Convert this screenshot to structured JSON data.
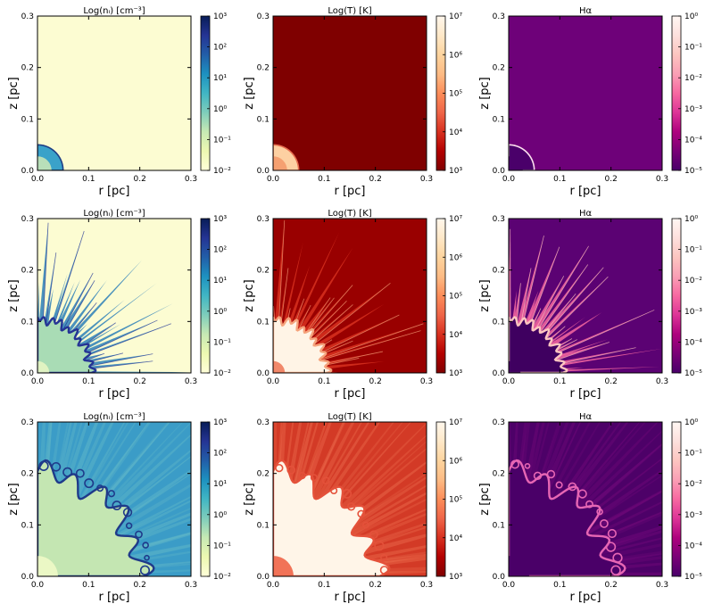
{
  "figure": {
    "rows": 3,
    "cols": 3,
    "row_variant": [
      "early",
      "spikes",
      "fingers"
    ]
  },
  "chart_data": [
    {
      "type": "heatmap",
      "row": 0,
      "col": 0,
      "title": "Log(nᵢ) [cm⁻³]",
      "xlabel": "r [pc]",
      "ylabel": "z [pc]",
      "xlim": [
        0,
        0.3
      ],
      "ylim": [
        0,
        0.3
      ],
      "xticks": [
        "0.0",
        "0.1",
        "0.2",
        "0.3"
      ],
      "yticks": [
        "0.0",
        "0.1",
        "0.2",
        "0.3"
      ],
      "colorbar": {
        "scale": "log",
        "range": [
          0.01,
          1000
        ],
        "ticks": [
          "10⁻²",
          "10⁻¹",
          "10⁰",
          "10¹",
          "10²",
          "10³"
        ],
        "cmap": "YlGnBu"
      },
      "colors": {
        "background": "#fcfcd2",
        "bubble": "#3aa2c9",
        "bubble_edge": "#1f3f86",
        "core": "#c7e6b7"
      },
      "features": {
        "ionized_radius_pc": 0.05
      }
    },
    {
      "type": "heatmap",
      "row": 0,
      "col": 1,
      "title": "Log(T) [K]",
      "xlabel": "r [pc]",
      "ylabel": "z [pc]",
      "xlim": [
        0,
        0.3
      ],
      "ylim": [
        0,
        0.3
      ],
      "xticks": [
        "0.0",
        "0.1",
        "0.2",
        "0.3"
      ],
      "yticks": [
        "0.0",
        "0.1",
        "0.2",
        "0.3"
      ],
      "colorbar": {
        "scale": "log",
        "range": [
          1000,
          10000000
        ],
        "ticks": [
          "10³",
          "10⁴",
          "10⁵",
          "10⁶",
          "10⁷"
        ],
        "cmap": "OrRd_r"
      },
      "colors": {
        "background": "#7f0000",
        "bubble": "#fdd0a2",
        "bubble_edge": "#e56b4e",
        "core": "#f49a6c"
      },
      "features": {
        "ionized_radius_pc": 0.05
      }
    },
    {
      "type": "heatmap",
      "row": 0,
      "col": 2,
      "title": "Hα",
      "xlabel": "r [pc]",
      "ylabel": "z [pc]",
      "xlim": [
        0,
        0.3
      ],
      "ylim": [
        0,
        0.3
      ],
      "xticks": [
        "0.0",
        "0.1",
        "0.2",
        "0.3"
      ],
      "yticks": [
        "0.0",
        "0.1",
        "0.2",
        "0.3"
      ],
      "colorbar": {
        "scale": "log",
        "range": [
          1e-05,
          1
        ],
        "ticks": [
          "10⁻⁵",
          "10⁻⁴",
          "10⁻³",
          "10⁻²",
          "10⁻¹",
          "10⁰"
        ],
        "cmap": "RdPu_r"
      },
      "colors": {
        "background": "#6e0179",
        "bubble": "#4a006a",
        "bubble_edge": "#fde0ef",
        "core": "#4a006a"
      },
      "features": {
        "ionized_radius_pc": 0.05
      }
    },
    {
      "type": "heatmap",
      "row": 1,
      "col": 0,
      "title": "Log(nᵢ) [cm⁻³]",
      "xlabel": "r [pc]",
      "ylabel": "z [pc]",
      "xlim": [
        0,
        0.3
      ],
      "ylim": [
        0,
        0.3
      ],
      "xticks": [
        "0.0",
        "0.1",
        "0.2",
        "0.3"
      ],
      "yticks": [
        "0.0",
        "0.1",
        "0.2",
        "0.3"
      ],
      "colorbar": {
        "scale": "log",
        "range": [
          0.01,
          1000
        ],
        "ticks": [
          "10⁻²",
          "10⁻¹",
          "10⁰",
          "10¹",
          "10²",
          "10³"
        ],
        "cmap": "YlGnBu"
      },
      "colors": {
        "background": "#fcfcd2",
        "bubble": "#a9dcb5",
        "bubble_edge": "#253494",
        "core": "#e6f5c3",
        "spike": "#2c7fb8"
      },
      "features": {
        "ionized_radius_pc": 0.105
      }
    },
    {
      "type": "heatmap",
      "row": 1,
      "col": 1,
      "title": "Log(T) [K]",
      "xlabel": "r [pc]",
      "ylabel": "z [pc]",
      "xlim": [
        0,
        0.3
      ],
      "ylim": [
        0,
        0.3
      ],
      "xticks": [
        "0.0",
        "0.1",
        "0.2",
        "0.3"
      ],
      "yticks": [
        "0.0",
        "0.1",
        "0.2",
        "0.3"
      ],
      "colorbar": {
        "scale": "log",
        "range": [
          1000,
          10000000
        ],
        "ticks": [
          "10³",
          "10⁴",
          "10⁵",
          "10⁶",
          "10⁷"
        ],
        "cmap": "OrRd_r"
      },
      "colors": {
        "background": "#990000",
        "bubble": "#fff4e6",
        "bubble_edge": "#f5a37c",
        "core": "#ef7c5c",
        "spike": "#d7301f"
      },
      "features": {
        "ionized_radius_pc": 0.105
      }
    },
    {
      "type": "heatmap",
      "row": 1,
      "col": 2,
      "title": "Hα",
      "xlabel": "r [pc]",
      "ylabel": "z [pc]",
      "xlim": [
        0,
        0.3
      ],
      "ylim": [
        0,
        0.3
      ],
      "xticks": [
        "0.0",
        "0.1",
        "0.2",
        "0.3"
      ],
      "yticks": [
        "0.0",
        "0.1",
        "0.2",
        "0.3"
      ],
      "colorbar": {
        "scale": "log",
        "range": [
          1e-05,
          1
        ],
        "ticks": [
          "10⁻⁵",
          "10⁻⁴",
          "10⁻³",
          "10⁻²",
          "10⁻¹",
          "10⁰"
        ],
        "cmap": "RdPu_r"
      },
      "colors": {
        "background": "#5b0273",
        "bubble": "#3f0060",
        "bubble_edge": "#fcc5c0",
        "core": "#3f0060",
        "spike": "#f768a1"
      },
      "features": {
        "ionized_radius_pc": 0.105
      }
    },
    {
      "type": "heatmap",
      "row": 2,
      "col": 0,
      "title": "Log(nᵢ) [cm⁻³]",
      "xlabel": "r [pc]",
      "ylabel": "z [pc]",
      "xlim": [
        0,
        0.3
      ],
      "ylim": [
        0,
        0.3
      ],
      "xticks": [
        "0.0",
        "0.1",
        "0.2",
        "0.3"
      ],
      "yticks": [
        "0.0",
        "0.1",
        "0.2",
        "0.3"
      ],
      "colorbar": {
        "scale": "log",
        "range": [
          0.01,
          1000
        ],
        "ticks": [
          "10⁻²",
          "10⁻¹",
          "10⁰",
          "10¹",
          "10²",
          "10³"
        ],
        "cmap": "YlGnBu"
      },
      "colors": {
        "background": "#3b9cc7",
        "bubble": "#c4e6b2",
        "bubble_edge": "#1f3a8a",
        "core": "#f0f9c6",
        "spike": "#6cc0c8"
      },
      "features": {
        "ionized_radius_pc": 0.2
      }
    },
    {
      "type": "heatmap",
      "row": 2,
      "col": 1,
      "title": "Log(T) [K]",
      "xlabel": "r [pc]",
      "ylabel": "z [pc]",
      "xlim": [
        0,
        0.3
      ],
      "ylim": [
        0,
        0.3
      ],
      "xticks": [
        "0.0",
        "0.1",
        "0.2",
        "0.3"
      ],
      "yticks": [
        "0.0",
        "0.1",
        "0.2",
        "0.3"
      ],
      "colorbar": {
        "scale": "log",
        "range": [
          1000,
          10000000
        ],
        "ticks": [
          "10³",
          "10⁴",
          "10⁵",
          "10⁶",
          "10⁷"
        ],
        "cmap": "OrRd_r"
      },
      "colors": {
        "background": "#d33a26",
        "bubble": "#fff5e8",
        "bubble_edge": "#e4513a",
        "core": "#ef6548",
        "spike": "#f07454"
      },
      "features": {
        "ionized_radius_pc": 0.2
      }
    },
    {
      "type": "heatmap",
      "row": 2,
      "col": 2,
      "title": "Hα",
      "xlabel": "r [pc]",
      "ylabel": "z [pc]",
      "xlim": [
        0,
        0.3
      ],
      "ylim": [
        0,
        0.3
      ],
      "xticks": [
        "0.0",
        "0.1",
        "0.2",
        "0.3"
      ],
      "yticks": [
        "0.0",
        "0.1",
        "0.2",
        "0.3"
      ],
      "colorbar": {
        "scale": "log",
        "range": [
          1e-05,
          1
        ],
        "ticks": [
          "10⁻⁵",
          "10⁻⁴",
          "10⁻³",
          "10⁻²",
          "10⁻¹",
          "10⁰"
        ],
        "cmap": "RdPu_r"
      },
      "colors": {
        "background": "#4d0168",
        "bubble": "#4a0068",
        "bubble_edge": "#e766b4",
        "core": "#4a0068",
        "spike": "#7a0b7e"
      },
      "features": {
        "ionized_radius_pc": 0.2
      }
    }
  ],
  "colormaps": {
    "YlGnBu": [
      "#ffffd9",
      "#edf8b1",
      "#c7e9b4",
      "#7fcdbb",
      "#41b6c4",
      "#1d91c0",
      "#225ea8",
      "#253494",
      "#081d58"
    ],
    "OrRd_r": [
      "#7f0000",
      "#b30000",
      "#d7301f",
      "#ef6548",
      "#fc8d59",
      "#fdbb84",
      "#fdd49e",
      "#fee8c8",
      "#fff7ec"
    ],
    "RdPu_r": [
      "#49006a",
      "#7a0177",
      "#ae017e",
      "#dd3497",
      "#f768a1",
      "#fa9fb5",
      "#fcc5c0",
      "#fde0dd",
      "#fff7f3"
    ]
  }
}
